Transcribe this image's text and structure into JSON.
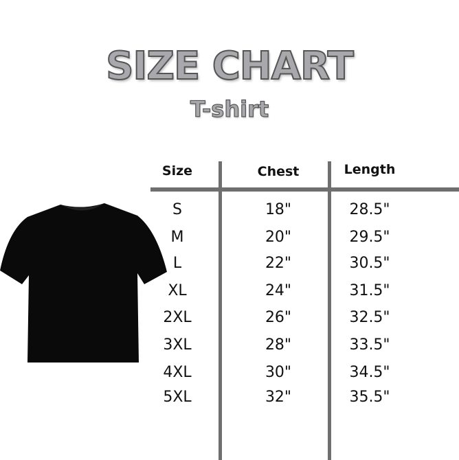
{
  "title": "SIZE CHART",
  "subtitle": "T-shirt",
  "table": {
    "headers": [
      "Size",
      "Chest",
      "Length"
    ],
    "rows": [
      [
        "S",
        "18\"",
        "28.5\""
      ],
      [
        "M",
        "20\"",
        "29.5\""
      ],
      [
        "L",
        "22\"",
        "30.5\""
      ],
      [
        "XL",
        "24\"",
        "31.5\""
      ],
      [
        "2XL",
        "26\"",
        "32.5\""
      ],
      [
        "3XL",
        "28\"",
        "33.5\""
      ],
      [
        "4XL",
        "30\"",
        "34.5\""
      ],
      [
        "5XL",
        "32\"",
        "35.5\""
      ]
    ]
  },
  "colors": {
    "shirt": "#0a0a0a",
    "lines": "#6f6f6f",
    "title_fill": "#a9a9ad"
  }
}
